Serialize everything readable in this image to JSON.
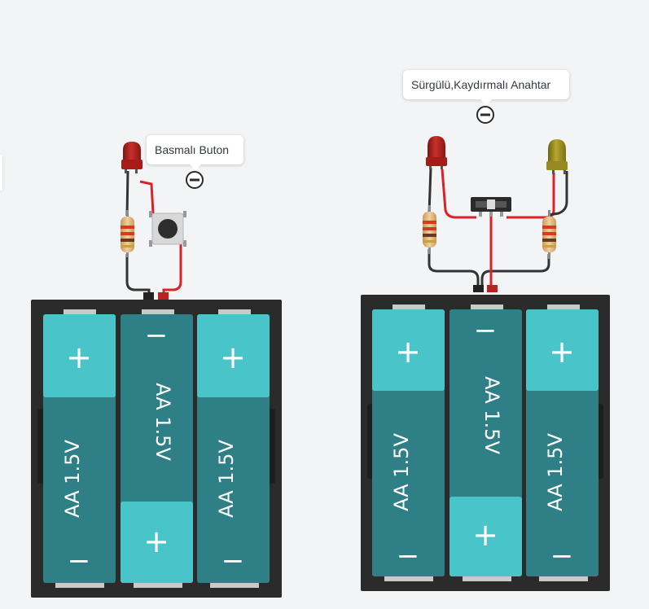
{
  "colors": {
    "background": "#f3f4f6",
    "holder": "#2b2b2b",
    "battery_dark": "#2e7f86",
    "battery_light": "#49c4c8",
    "wire_red": "#d9222a",
    "wire_black": "#333333",
    "led_red": "#b8201c",
    "led_yellow": "#a89a22"
  },
  "circuits": [
    {
      "name": "push-button-circuit",
      "tooltip": "Basmalı Buton",
      "batteries": [
        {
          "label": "AA 1.5V",
          "plus": "+",
          "minus": "−",
          "orientation": "plus-top"
        },
        {
          "label": "AA 1.5V",
          "plus": "+",
          "minus": "−",
          "orientation": "minus-top"
        },
        {
          "label": "AA 1.5V",
          "plus": "+",
          "minus": "−",
          "orientation": "plus-top"
        }
      ]
    },
    {
      "name": "slide-switch-circuit",
      "tooltip": "Sürgülü,Kaydırmalı Anahtar",
      "batteries": [
        {
          "label": "AA 1.5V",
          "plus": "+",
          "minus": "−",
          "orientation": "plus-top"
        },
        {
          "label": "AA 1.5V",
          "plus": "+",
          "minus": "−",
          "orientation": "minus-top"
        },
        {
          "label": "AA 1.5V",
          "plus": "+",
          "minus": "−",
          "orientation": "plus-top"
        }
      ]
    }
  ]
}
